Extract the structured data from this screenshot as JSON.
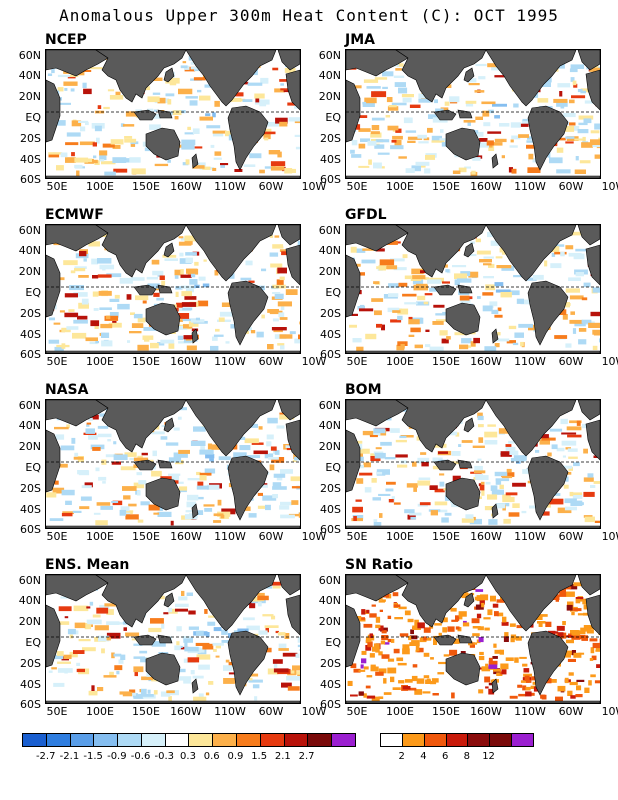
{
  "title": "Anomalous Upper 300m Heat Content (C): OCT 1995",
  "lat_labels": [
    "60N",
    "40N",
    "20N",
    "EQ",
    "20S",
    "40S",
    "60S"
  ],
  "lon_labels": [
    "50E",
    "100E",
    "150E",
    "160W",
    "110W",
    "60W",
    "10W"
  ],
  "panels": [
    {
      "name": "NCEP"
    },
    {
      "name": "JMA"
    },
    {
      "name": "ECMWF"
    },
    {
      "name": "GFDL"
    },
    {
      "name": "NASA"
    },
    {
      "name": "BOM"
    },
    {
      "name": "ENS. Mean"
    },
    {
      "name": "SN Ratio"
    }
  ],
  "colorbar_anomaly": {
    "colors": [
      "#1a5fd0",
      "#2f7ee0",
      "#5a9ee8",
      "#85bef0",
      "#aedaf5",
      "#d6f0fa",
      "#ffffff",
      "#fde79a",
      "#fcb04a",
      "#f77c1c",
      "#e63a10",
      "#b8120a",
      "#7a0a0a",
      "#9b1fd0"
    ],
    "labels": [
      "-2.7",
      "-2.1",
      "-1.5",
      "-0.9",
      "-0.6",
      "-0.3",
      "0.3",
      "0.6",
      "0.9",
      "1.5",
      "2.1",
      "2.7"
    ]
  },
  "colorbar_sn": {
    "colors": [
      "#ffffff",
      "#fc9a1a",
      "#f0580c",
      "#c81a0a",
      "#8a0c0c",
      "#7a0a0a",
      "#9b1fd0"
    ],
    "labels": [
      "2",
      "4",
      "6",
      "8",
      "12"
    ]
  },
  "colors": {
    "land": "#5a5a5a",
    "eq_line": "#000000"
  }
}
